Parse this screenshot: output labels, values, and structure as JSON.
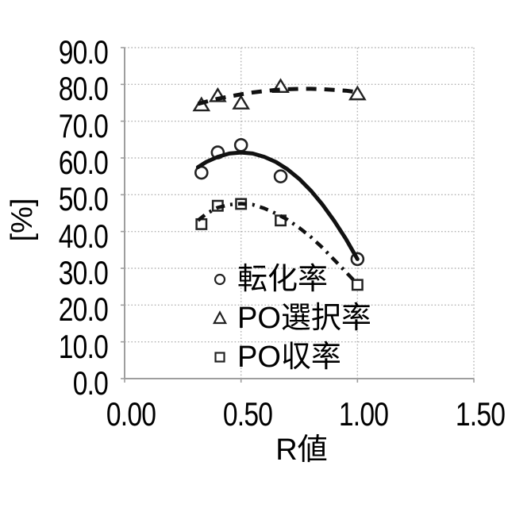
{
  "chart_data": {
    "type": "scatter",
    "title": "",
    "xlabel": "R値",
    "ylabel": "[%]",
    "xlim": [
      0.0,
      1.5
    ],
    "ylim": [
      0.0,
      90.0
    ],
    "grid": "dotted",
    "legend_position": "inside-bottom",
    "xticks": {
      "values": [
        0.0,
        0.5,
        1.0,
        1.5
      ],
      "labels": [
        "0.00",
        "0.50",
        "1.00",
        "1.50"
      ]
    },
    "yticks": {
      "values": [
        0,
        10,
        20,
        30,
        40,
        50,
        60,
        70,
        80,
        90
      ],
      "labels": [
        "0.0",
        "10.0",
        "20.0",
        "30.0",
        "40.0",
        "50.0",
        "60.0",
        "70.0",
        "80.0",
        "90.0"
      ]
    },
    "series": [
      {
        "key": "conversion",
        "name": "転化率",
        "marker": "circle",
        "line_style": "solid",
        "x": [
          0.33,
          0.4,
          0.5,
          0.67,
          1.0
        ],
        "y": [
          56.0,
          61.5,
          63.5,
          55.0,
          32.5
        ],
        "trend_points": [
          [
            0.315,
            57.5
          ],
          [
            0.35,
            58.9
          ],
          [
            0.4,
            60.3
          ],
          [
            0.45,
            61.2
          ],
          [
            0.5,
            61.5
          ],
          [
            0.55,
            61.2
          ],
          [
            0.6,
            60.3
          ],
          [
            0.65,
            58.9
          ],
          [
            0.7,
            56.9
          ],
          [
            0.75,
            54.3
          ],
          [
            0.8,
            51.1
          ],
          [
            0.85,
            47.3
          ],
          [
            0.9,
            42.9
          ],
          [
            0.95,
            38.0
          ],
          [
            1.0,
            32.5
          ]
        ]
      },
      {
        "key": "po-selectivity",
        "name": "PO選択率",
        "marker": "triangle",
        "line_style": "dashed",
        "x": [
          0.33,
          0.4,
          0.5,
          0.67,
          1.0
        ],
        "y": [
          74.5,
          77.0,
          75.0,
          79.5,
          77.5
        ],
        "trend_points": [
          [
            0.315,
            74.7
          ],
          [
            0.35,
            75.3
          ],
          [
            0.4,
            76.1
          ],
          [
            0.45,
            76.7
          ],
          [
            0.5,
            77.3
          ],
          [
            0.55,
            77.8
          ],
          [
            0.6,
            78.2
          ],
          [
            0.65,
            78.5
          ],
          [
            0.7,
            78.7
          ],
          [
            0.75,
            78.8
          ],
          [
            0.8,
            78.8
          ],
          [
            0.85,
            78.7
          ],
          [
            0.9,
            78.5
          ],
          [
            0.95,
            78.3
          ],
          [
            1.0,
            77.9
          ]
        ]
      },
      {
        "key": "po-yield",
        "name": "PO収率",
        "marker": "square",
        "line_style": "dashdot",
        "x": [
          0.33,
          0.4,
          0.5,
          0.67,
          1.0
        ],
        "y": [
          42.0,
          47.0,
          47.5,
          43.0,
          25.5
        ],
        "trend_points": [
          [
            0.315,
            43.0
          ],
          [
            0.35,
            44.8
          ],
          [
            0.4,
            46.5
          ],
          [
            0.45,
            47.3
          ],
          [
            0.5,
            47.6
          ],
          [
            0.55,
            47.3
          ],
          [
            0.6,
            46.3
          ],
          [
            0.65,
            44.9
          ],
          [
            0.7,
            43.2
          ],
          [
            0.75,
            41.0
          ],
          [
            0.8,
            38.5
          ],
          [
            0.85,
            35.6
          ],
          [
            0.9,
            32.3
          ],
          [
            0.95,
            29.0
          ],
          [
            0.995,
            26.0
          ]
        ]
      }
    ],
    "colors": {
      "line": "#111111",
      "marker": "#222222",
      "grid": "#b3b3b3",
      "axis": "#9e9e9e",
      "text": "#000000",
      "background": "#ffffff"
    }
  }
}
